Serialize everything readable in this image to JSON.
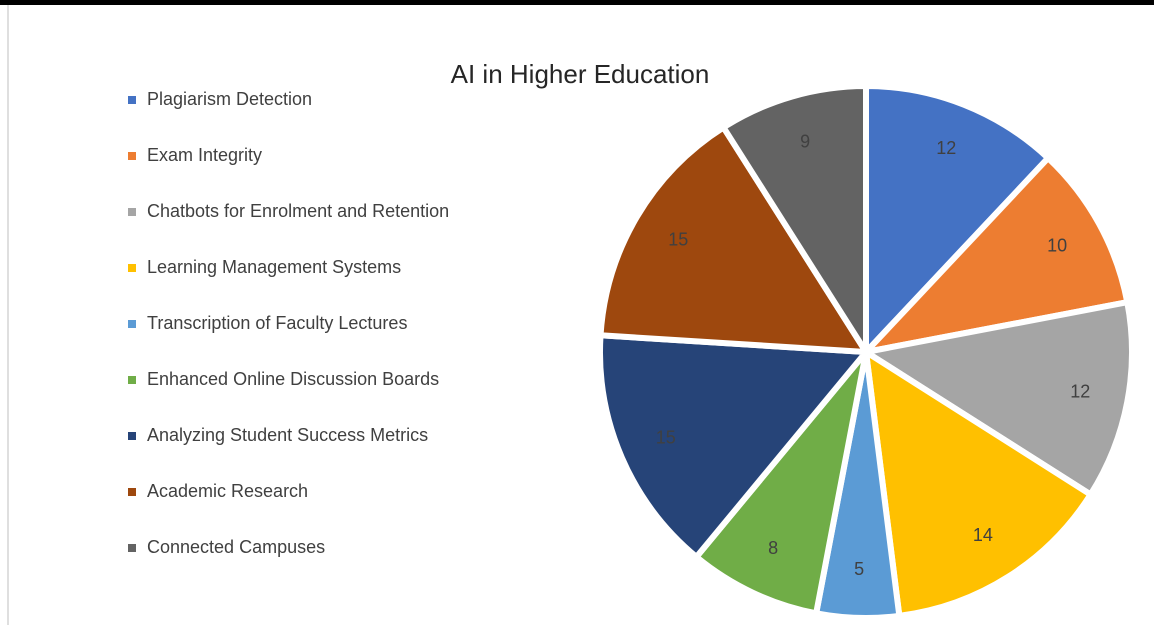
{
  "chart_data": {
    "type": "pie",
    "title": "AI in Higher Education",
    "categories": [
      "Plagiarism Detection",
      "Exam Integrity",
      "Chatbots for Enrolment and Retention",
      "Learning Management Systems",
      "Transcription of Faculty Lectures",
      "Enhanced Online Discussion Boards",
      "Analyzing Student Success Metrics",
      "Academic Research",
      "Connected Campuses"
    ],
    "values": [
      12,
      10,
      12,
      14,
      5,
      8,
      15,
      15,
      9
    ],
    "colors": [
      "#4472c4",
      "#ed7d31",
      "#a5a5a5",
      "#ffc000",
      "#5b9bd5",
      "#70ad47",
      "#264478",
      "#9e480e",
      "#636363"
    ],
    "legend": "left"
  }
}
